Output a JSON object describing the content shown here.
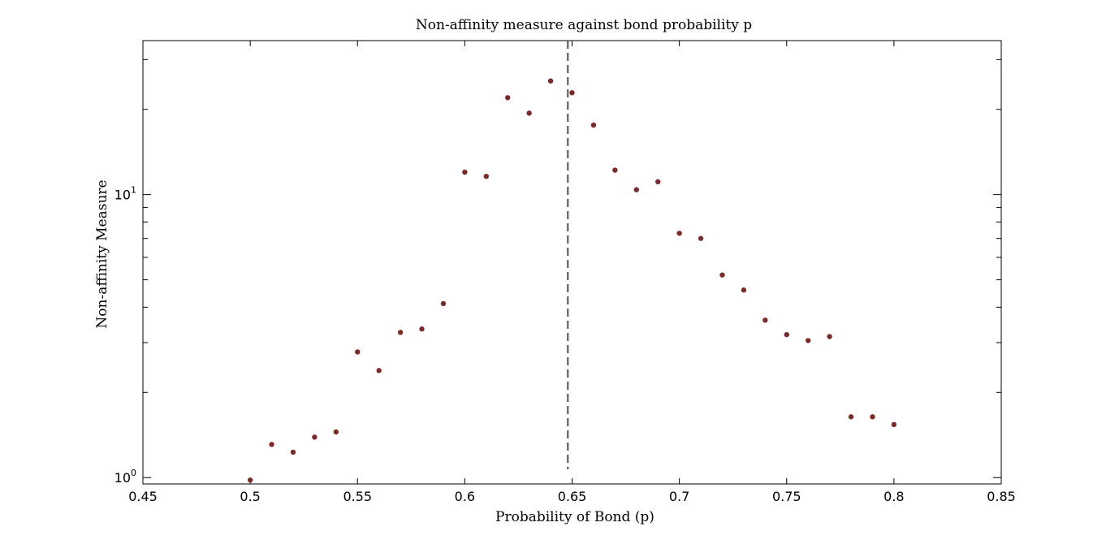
{
  "chart_data": {
    "type": "scatter",
    "title": "Non-affinity measure against bond probability p",
    "xlabel": "Probability of Bond (p)",
    "ylabel": "Non-affinity Measure",
    "xlim": [
      0.45,
      0.85
    ],
    "ylim": [
      0.95,
      35
    ],
    "yscale": "log",
    "x_ticks": [
      "0.45",
      "0.5",
      "0.55",
      "0.6",
      "0.65",
      "0.7",
      "0.75",
      "0.8",
      "0.85"
    ],
    "y_ticks": [
      {
        "base": "10",
        "exp": "0",
        "value": 1
      },
      {
        "base": "10",
        "exp": "1",
        "value": 10
      }
    ],
    "grid": false,
    "marker_color": "#7b2a2a",
    "vline": {
      "x": 0.648,
      "style": "dashed",
      "color": "#707070"
    },
    "series": [
      {
        "x": [
          0.5,
          0.51,
          0.52,
          0.53,
          0.54,
          0.55,
          0.56,
          0.57,
          0.58,
          0.59,
          0.6,
          0.61,
          0.62,
          0.63,
          0.64,
          0.65,
          0.66,
          0.67,
          0.68,
          0.69,
          0.7,
          0.71,
          0.72,
          0.73,
          0.74,
          0.75,
          0.76,
          0.77,
          0.78,
          0.79,
          0.8
        ],
        "y": [
          0.98,
          1.31,
          1.23,
          1.39,
          1.45,
          2.78,
          2.39,
          3.26,
          3.35,
          4.12,
          12.0,
          11.6,
          22.0,
          19.4,
          25.2,
          22.9,
          17.6,
          12.2,
          10.4,
          11.1,
          7.3,
          7.0,
          5.2,
          4.6,
          3.6,
          3.2,
          3.05,
          3.15,
          1.64,
          1.64,
          1.54
        ]
      }
    ]
  }
}
